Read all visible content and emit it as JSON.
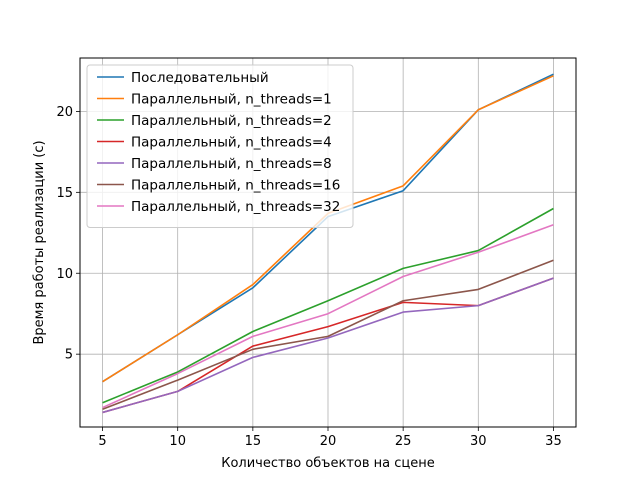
{
  "chart_data": {
    "type": "line",
    "title": "",
    "xlabel": "Количество объектов на сцене",
    "ylabel": "Время работы реализации (с)",
    "x": [
      5,
      10,
      15,
      20,
      25,
      30,
      35
    ],
    "xlim": [
      3.5,
      36.5
    ],
    "ylim": [
      0.5,
      23.3
    ],
    "xticks": [
      5,
      10,
      15,
      20,
      25,
      30,
      35
    ],
    "yticks": [
      5,
      10,
      15,
      20
    ],
    "grid": true,
    "legend_position": "upper-left",
    "series": [
      {
        "name": "Последовательный",
        "color": "#1f77b4",
        "values": [
          3.3,
          6.2,
          9.1,
          13.5,
          15.1,
          20.1,
          22.3
        ]
      },
      {
        "name": "Параллельный, n_threads=1",
        "color": "#ff7f0e",
        "values": [
          3.3,
          6.2,
          9.3,
          13.7,
          15.4,
          20.1,
          22.2
        ]
      },
      {
        "name": "Параллельный, n_threads=2",
        "color": "#2ca02c",
        "values": [
          2.0,
          3.9,
          6.4,
          8.3,
          10.3,
          11.4,
          14.0
        ]
      },
      {
        "name": "Параллельный, n_threads=4",
        "color": "#d62728",
        "values": [
          1.4,
          2.7,
          5.5,
          6.7,
          8.2,
          8.0,
          9.7
        ]
      },
      {
        "name": "Параллельный, n_threads=8",
        "color": "#9467bd",
        "values": [
          1.4,
          2.7,
          4.8,
          6.0,
          7.6,
          8.0,
          9.7
        ]
      },
      {
        "name": "Параллельный, n_threads=16",
        "color": "#8c564b",
        "values": [
          1.6,
          3.4,
          5.3,
          6.1,
          8.3,
          9.0,
          10.8
        ]
      },
      {
        "name": "Параллельный, n_threads=32",
        "color": "#e377c2",
        "values": [
          1.7,
          3.8,
          6.1,
          7.5,
          9.8,
          11.3,
          13.0
        ]
      }
    ]
  }
}
